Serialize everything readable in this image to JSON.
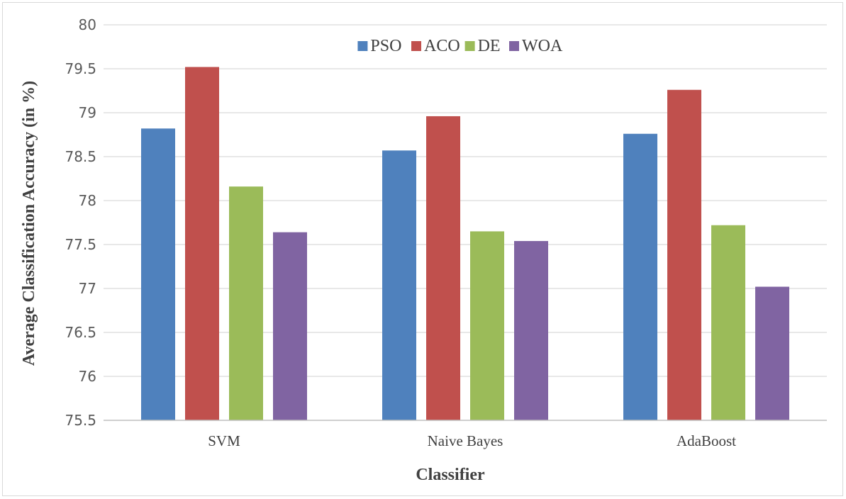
{
  "chart_data": {
    "type": "bar",
    "title": "",
    "xlabel": "Classifier",
    "ylabel": "Average Classification Accuracy (in %)",
    "ylim": [
      75.5,
      80
    ],
    "ytick_step": 0.5,
    "yticks": [
      "75.5",
      "76",
      "76.5",
      "77",
      "77.5",
      "78",
      "78.5",
      "79",
      "79.5",
      "80"
    ],
    "grid": true,
    "legend_position": "top-center",
    "categories": [
      "SVM",
      "Naive Bayes",
      "AdaBoost"
    ],
    "series": [
      {
        "name": "PSO",
        "color": "#4f81bd",
        "values": [
          78.82,
          78.57,
          78.76
        ]
      },
      {
        "name": "ACO",
        "color": "#c0504d",
        "values": [
          79.52,
          78.96,
          79.26
        ]
      },
      {
        "name": "DE",
        "color": "#9bbb59",
        "values": [
          78.16,
          77.65,
          77.72
        ]
      },
      {
        "name": "WOA",
        "color": "#8064a2",
        "values": [
          77.64,
          77.54,
          77.02
        ]
      }
    ]
  }
}
